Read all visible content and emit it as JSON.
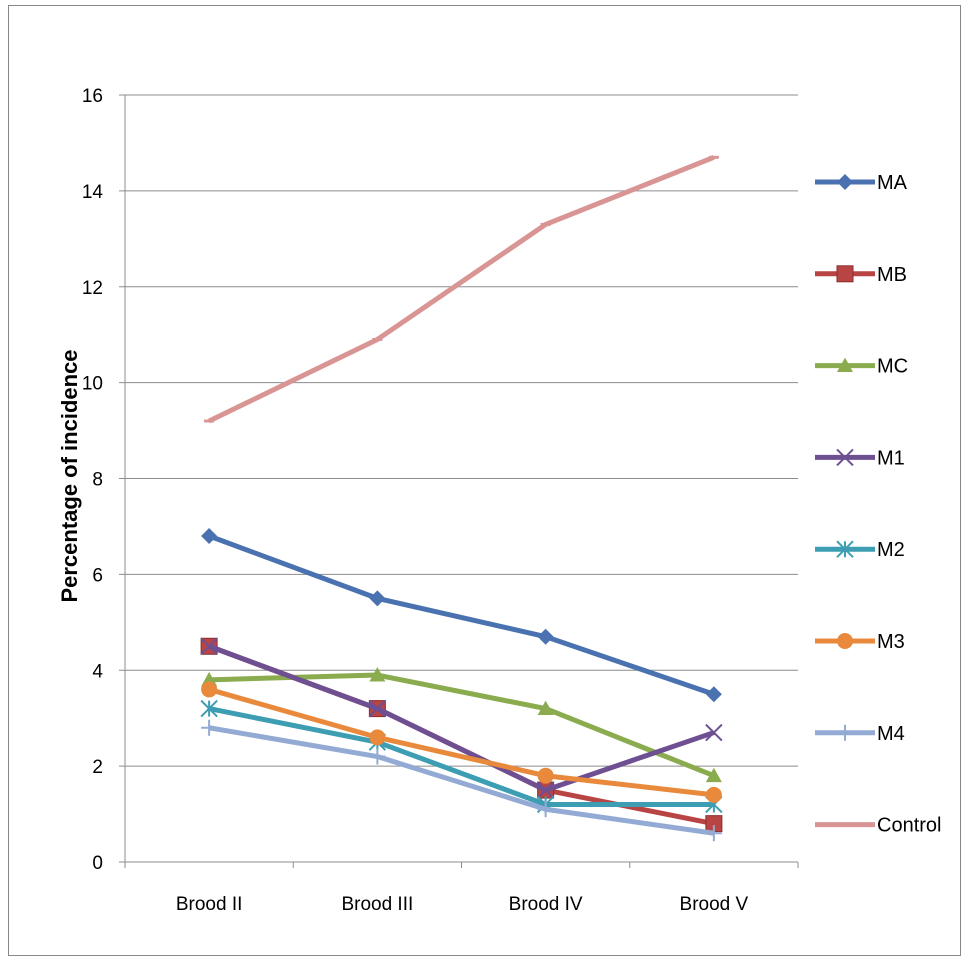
{
  "chart_data": {
    "type": "line",
    "title": "",
    "xlabel": "",
    "ylabel": "Percentage of incidence",
    "categories": [
      "Brood II",
      "Brood III",
      "Brood IV",
      "Brood V"
    ],
    "ylim": [
      0,
      16
    ],
    "yticks": [
      0,
      2,
      4,
      6,
      8,
      10,
      12,
      14,
      16
    ],
    "grid": true,
    "legend_position": "right",
    "series": [
      {
        "name": "MA",
        "values": [
          6.8,
          5.5,
          4.7,
          3.5
        ],
        "color": "#4a72b0",
        "marker": "diamond"
      },
      {
        "name": "MB",
        "values": [
          4.5,
          3.2,
          1.5,
          0.8
        ],
        "color": "#b84444",
        "marker": "square"
      },
      {
        "name": "MC",
        "values": [
          3.8,
          3.9,
          3.2,
          1.8
        ],
        "color": "#8aac4e",
        "marker": "triangle"
      },
      {
        "name": "M1",
        "values": [
          4.5,
          3.2,
          1.5,
          2.7
        ],
        "color": "#6e4f92",
        "marker": "x"
      },
      {
        "name": "M2",
        "values": [
          3.2,
          2.5,
          1.2,
          1.2
        ],
        "color": "#3c9db3",
        "marker": "star"
      },
      {
        "name": "M3",
        "values": [
          3.6,
          2.6,
          1.8,
          1.4
        ],
        "color": "#e8893c",
        "marker": "circle"
      },
      {
        "name": "M4",
        "values": [
          2.8,
          2.2,
          1.1,
          0.6
        ],
        "color": "#93aad4",
        "marker": "plus"
      },
      {
        "name": "Control",
        "values": [
          9.2,
          10.9,
          13.3,
          14.7
        ],
        "color": "#d99594",
        "marker": "dash"
      }
    ]
  }
}
